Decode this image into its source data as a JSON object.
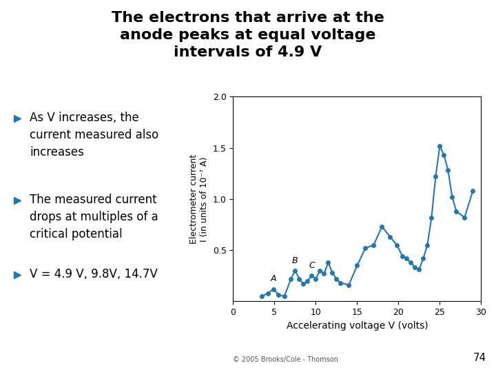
{
  "chart_data": {
    "type": "line",
    "title": "The electrons that arrive at the\nanode peaks at equal voltage\nintervals of 4.9 V",
    "xlabel": "Accelerating voltage V (volts)",
    "ylabel": "Electrometer current\nI (in units of 10⁻⁷ A)",
    "x": [
      3.5,
      4.2,
      4.9,
      5.5,
      6.2,
      7.0,
      7.5,
      8.0,
      8.5,
      9.0,
      9.5,
      10.0,
      10.5,
      11.0,
      11.5,
      12.0,
      12.5,
      13.0,
      14.0,
      15.0,
      16.0,
      17.0,
      18.0,
      19.0,
      19.8,
      20.5,
      21.0,
      21.5,
      22.0,
      22.5,
      23.0,
      23.5,
      24.0,
      24.5,
      25.0,
      25.5,
      26.0,
      26.5,
      27.0,
      28.0,
      29.0
    ],
    "values": [
      0.05,
      0.08,
      0.12,
      0.06,
      0.05,
      0.22,
      0.3,
      0.22,
      0.17,
      0.2,
      0.25,
      0.22,
      0.3,
      0.27,
      0.38,
      0.28,
      0.22,
      0.18,
      0.16,
      0.35,
      0.52,
      0.55,
      0.73,
      0.63,
      0.55,
      0.44,
      0.42,
      0.38,
      0.33,
      0.31,
      0.42,
      0.55,
      0.82,
      1.22,
      1.52,
      1.43,
      1.28,
      1.02,
      0.88,
      0.82,
      1.08
    ],
    "marker": "o",
    "xlim": [
      0,
      30
    ],
    "ylim": [
      0,
      2.0
    ],
    "xticks": [
      0,
      5,
      10,
      15,
      20,
      25,
      30
    ],
    "yticks": [
      0.5,
      {
        "value": 1,
        "label": "1.0"
      },
      1.5,
      {
        "value": 2,
        "label": "2.0"
      }
    ],
    "grid": false,
    "annotations": [
      {
        "text": "A",
        "x": 4.9,
        "y": 0.12
      },
      {
        "text": "B",
        "x": 7.5,
        "y": 0.3
      },
      {
        "text": "C",
        "x": 9.5,
        "y": 0.25
      }
    ],
    "notes": [
      "As V increases, the\ncurrent measured also\nincreases",
      "The measured current\ndrops at multiples of a\ncritical potential",
      "V = 4.9 V, 9.8V, 14.7V"
    ],
    "page_number": "74",
    "source": "© 2005 Brooks/Cole - Thomson"
  }
}
